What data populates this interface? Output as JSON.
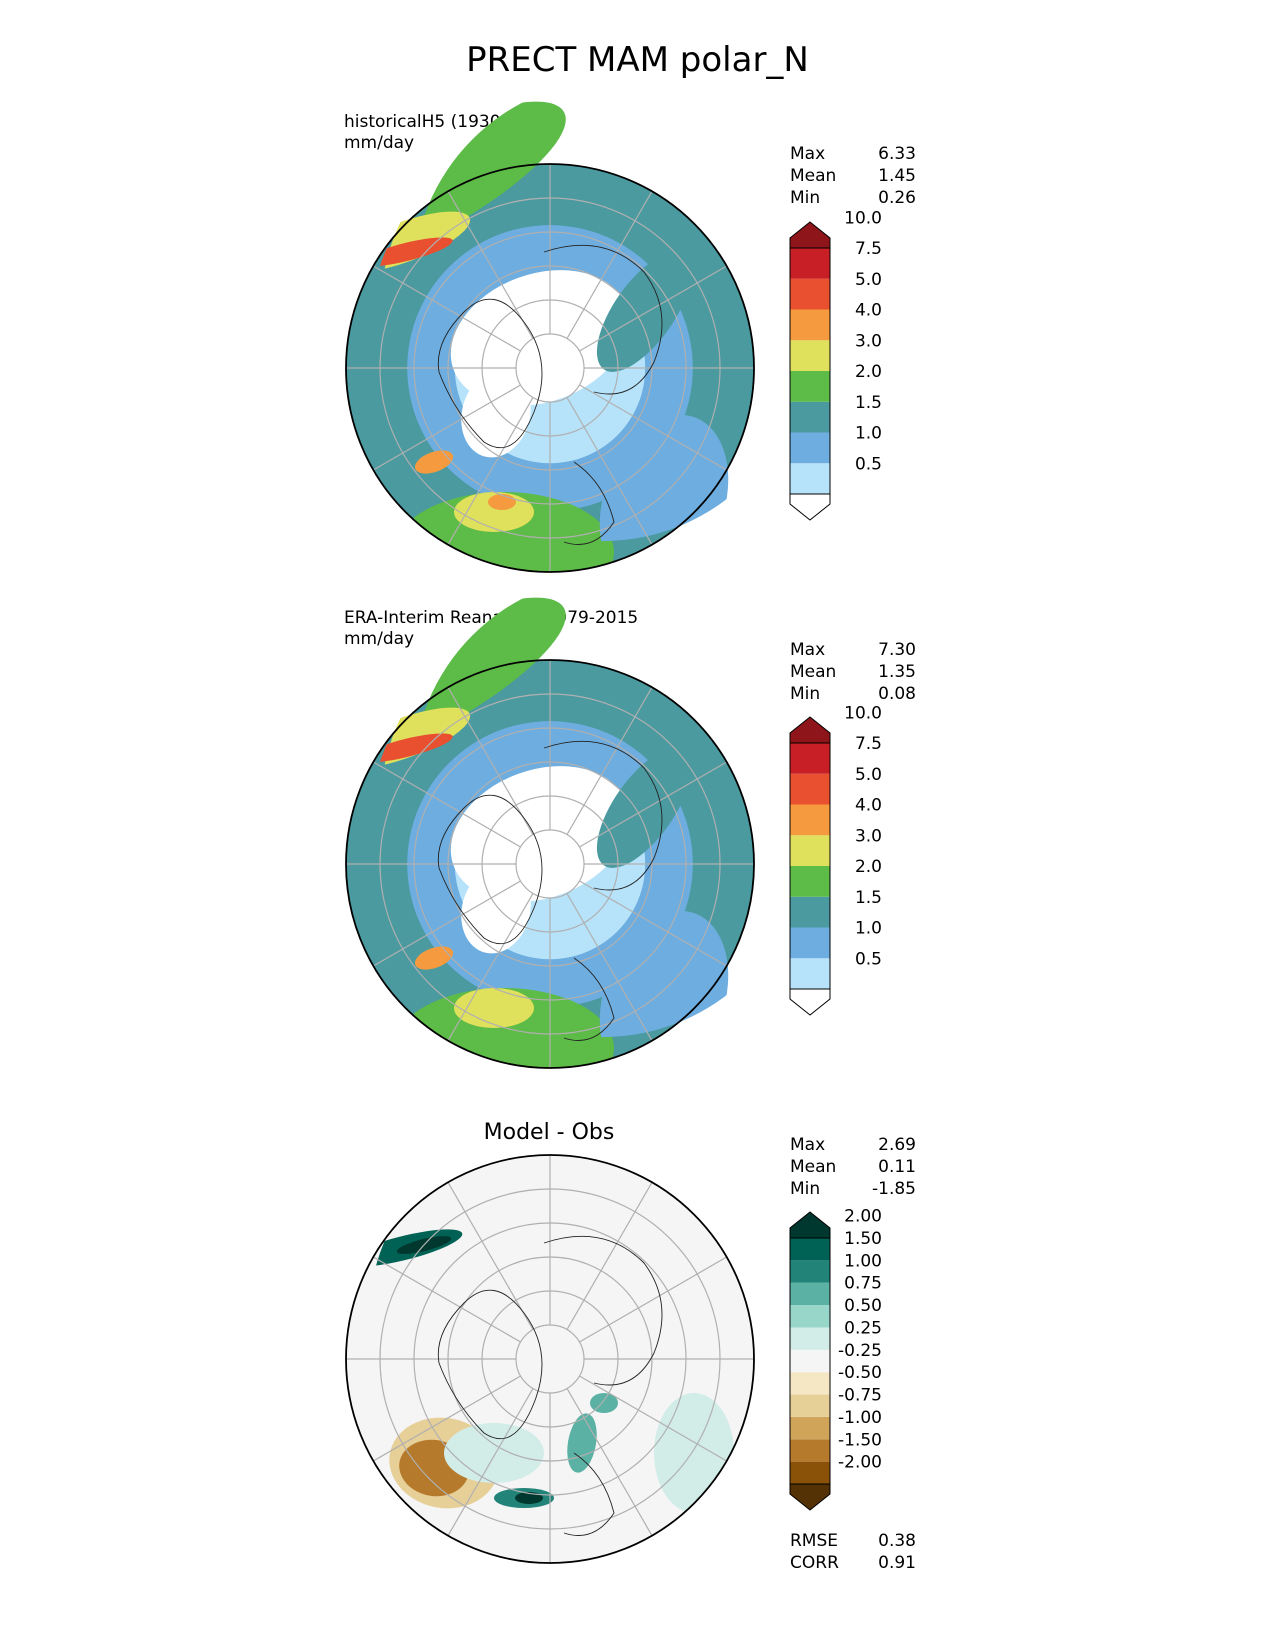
{
  "title": "PRECT MAM polar_N",
  "panels": [
    {
      "id": "test",
      "title_line1": "historicalH5 (1930-1949)",
      "title_line2": "mm/day",
      "stats": [
        [
          "Max",
          "6.33"
        ],
        [
          "Mean",
          "1.45"
        ],
        [
          "Min",
          "0.26"
        ]
      ],
      "colorbar": {
        "levels": [
          "0.5",
          "1.0",
          "1.5",
          "2.0",
          "3.0",
          "4.0",
          "5.0",
          "7.5",
          "10.0"
        ],
        "colors": [
          "#ffffff",
          "#b7e3fa",
          "#6eaddf",
          "#4a9aa0",
          "#5dbb47",
          "#dfe05c",
          "#f59a3e",
          "#e9502f",
          "#c81e25",
          "#8e161b"
        ]
      }
    },
    {
      "id": "ref",
      "title_line1": "ERA-Interim Reanalysis 1979-2015",
      "title_line2": "mm/day",
      "stats": [
        [
          "Max",
          "7.30"
        ],
        [
          "Mean",
          "1.35"
        ],
        [
          "Min",
          "0.08"
        ]
      ],
      "colorbar": {
        "levels": [
          "0.5",
          "1.0",
          "1.5",
          "2.0",
          "3.0",
          "4.0",
          "5.0",
          "7.5",
          "10.0"
        ],
        "colors": [
          "#ffffff",
          "#b7e3fa",
          "#6eaddf",
          "#4a9aa0",
          "#5dbb47",
          "#dfe05c",
          "#f59a3e",
          "#e9502f",
          "#c81e25",
          "#8e161b"
        ]
      }
    },
    {
      "id": "diff",
      "title": "Model - Obs",
      "stats": [
        [
          "Max",
          "2.69"
        ],
        [
          "Mean",
          "0.11"
        ],
        [
          "Min",
          "-1.85"
        ]
      ],
      "colorbar": {
        "levels": [
          "-2.00",
          "-1.50",
          "-1.00",
          "-0.75",
          "-0.50",
          "-0.25",
          "0.25",
          "0.50",
          "0.75",
          "1.00",
          "1.50",
          "2.00"
        ],
        "colors": [
          "#553205",
          "#8a5109",
          "#b57a2c",
          "#d0a55a",
          "#e7cf98",
          "#f5e7c4",
          "#f5f5f5",
          "#d2ece7",
          "#98d6c9",
          "#5bb1a4",
          "#228478",
          "#006155",
          "#00382f"
        ]
      },
      "metrics": [
        [
          "RMSE",
          "0.38"
        ],
        [
          "CORR",
          "0.91"
        ]
      ]
    }
  ]
}
